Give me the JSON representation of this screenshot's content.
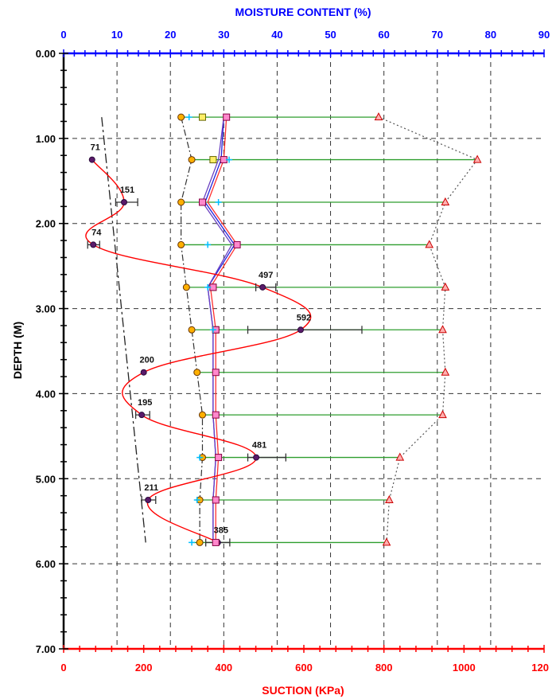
{
  "chart_data": {
    "type": "scatter",
    "title": "",
    "axes": {
      "top": {
        "label": "MOISTURE CONTENT (%)",
        "range": [
          0,
          90
        ],
        "ticks": [
          "0",
          "10",
          "20",
          "30",
          "40",
          "50",
          "60",
          "70",
          "80",
          "90"
        ],
        "color": "#0000ff"
      },
      "bottom": {
        "label": "SUCTION (KPa)",
        "range": [
          0,
          1200
        ],
        "ticks": [
          "0",
          "200",
          "400",
          "600",
          "800",
          "1000",
          "120"
        ],
        "color": "#ff0000"
      },
      "left": {
        "label": "DEPTH (M)",
        "range": [
          0,
          7
        ],
        "ticks": [
          "0.00",
          "1.00",
          "2.00",
          "3.00",
          "4.00",
          "5.00",
          "6.00",
          "7.00"
        ],
        "color": "#000000"
      }
    },
    "grid": true,
    "depths": [
      0.75,
      1.25,
      1.75,
      2.25,
      2.75,
      3.25,
      3.75,
      4.25,
      4.75,
      5.25,
      5.75
    ],
    "suction": {
      "depths": [
        1.25,
        1.75,
        2.25,
        2.75,
        3.25,
        3.75,
        4.25,
        4.75,
        5.25,
        5.75
      ],
      "values": [
        71,
        151,
        74,
        497,
        592,
        200,
        195,
        481,
        211,
        385
      ],
      "labels": [
        "71",
        "151",
        "74",
        "497",
        "592",
        "200",
        "195",
        "481",
        "211",
        "385"
      ],
      "error_low": [
        null,
        130,
        60,
        480,
        460,
        null,
        180,
        460,
        195,
        355
      ],
      "error_high": [
        null,
        185,
        90,
        530,
        745,
        null,
        215,
        555,
        230,
        415
      ],
      "color": "#ff0000"
    },
    "moisture_series": [
      {
        "marker": "circle-orange",
        "values": [
          22.0,
          24.0,
          22.0,
          22.0,
          23.0,
          24.0,
          25.0,
          26.0,
          26.0,
          25.5,
          25.5
        ],
        "color": "#ff8c00"
      },
      {
        "marker": "square-yellow",
        "values": [
          26.0,
          28.0,
          null,
          null,
          28.0,
          28.5,
          null,
          null,
          null,
          null,
          null
        ],
        "color": "#e6c300"
      },
      {
        "marker": "square-pink",
        "values": [
          30.5,
          30.0,
          26.0,
          32.5,
          28.0,
          28.5,
          28.5,
          28.5,
          29.0,
          28.5,
          28.5
        ],
        "color": "#ff66cc"
      },
      {
        "marker": "plus-cyan",
        "values": [
          23.5,
          31.0,
          29.0,
          27.0,
          27.0,
          28.0,
          null,
          null,
          25.5,
          25.0,
          24.0
        ],
        "color": "#00bfff"
      },
      {
        "marker": "triangle-red",
        "values": [
          59.0,
          77.5,
          71.5,
          68.5,
          71.5,
          71.0,
          71.5,
          71.0,
          63.0,
          61.0,
          60.5
        ],
        "color": "#ff0000"
      }
    ],
    "moisture_envelope_lines": [
      {
        "values": [
          30.5,
          30.0,
          27.0,
          32.5,
          27.5,
          28.5,
          28.5,
          28.5,
          29.0,
          28.5,
          28.5
        ],
        "color": "#ff3030"
      },
      {
        "values": [
          30.0,
          29.5,
          26.5,
          32.0,
          27.0,
          28.0,
          28.0,
          28.0,
          28.5,
          28.0,
          28.0
        ],
        "color": "#2222dd"
      },
      {
        "values": [
          30.0,
          29.0,
          26.0,
          31.5,
          27.0,
          28.0,
          28.0,
          28.0,
          28.5,
          28.0,
          28.0
        ],
        "color": "#6a3fc0"
      }
    ],
    "moisture_dashed_line": {
      "values": [
        22.0,
        24.0,
        22.0,
        22.0,
        23.0,
        24.0,
        25.0,
        26.0,
        26.0,
        25.5,
        25.5
      ],
      "color": "#333333"
    },
    "liquid_limit_dotted": {
      "values": [
        59.0,
        77.5,
        71.5,
        68.5,
        71.5,
        71.0,
        71.5,
        71.0,
        63.0,
        61.0,
        60.5
      ],
      "color": "#555555"
    },
    "trend_line": {
      "from": {
        "suction": 95,
        "depth": 0.75
      },
      "to": {
        "suction": 205,
        "depth": 5.75
      },
      "color": "#222222"
    }
  }
}
